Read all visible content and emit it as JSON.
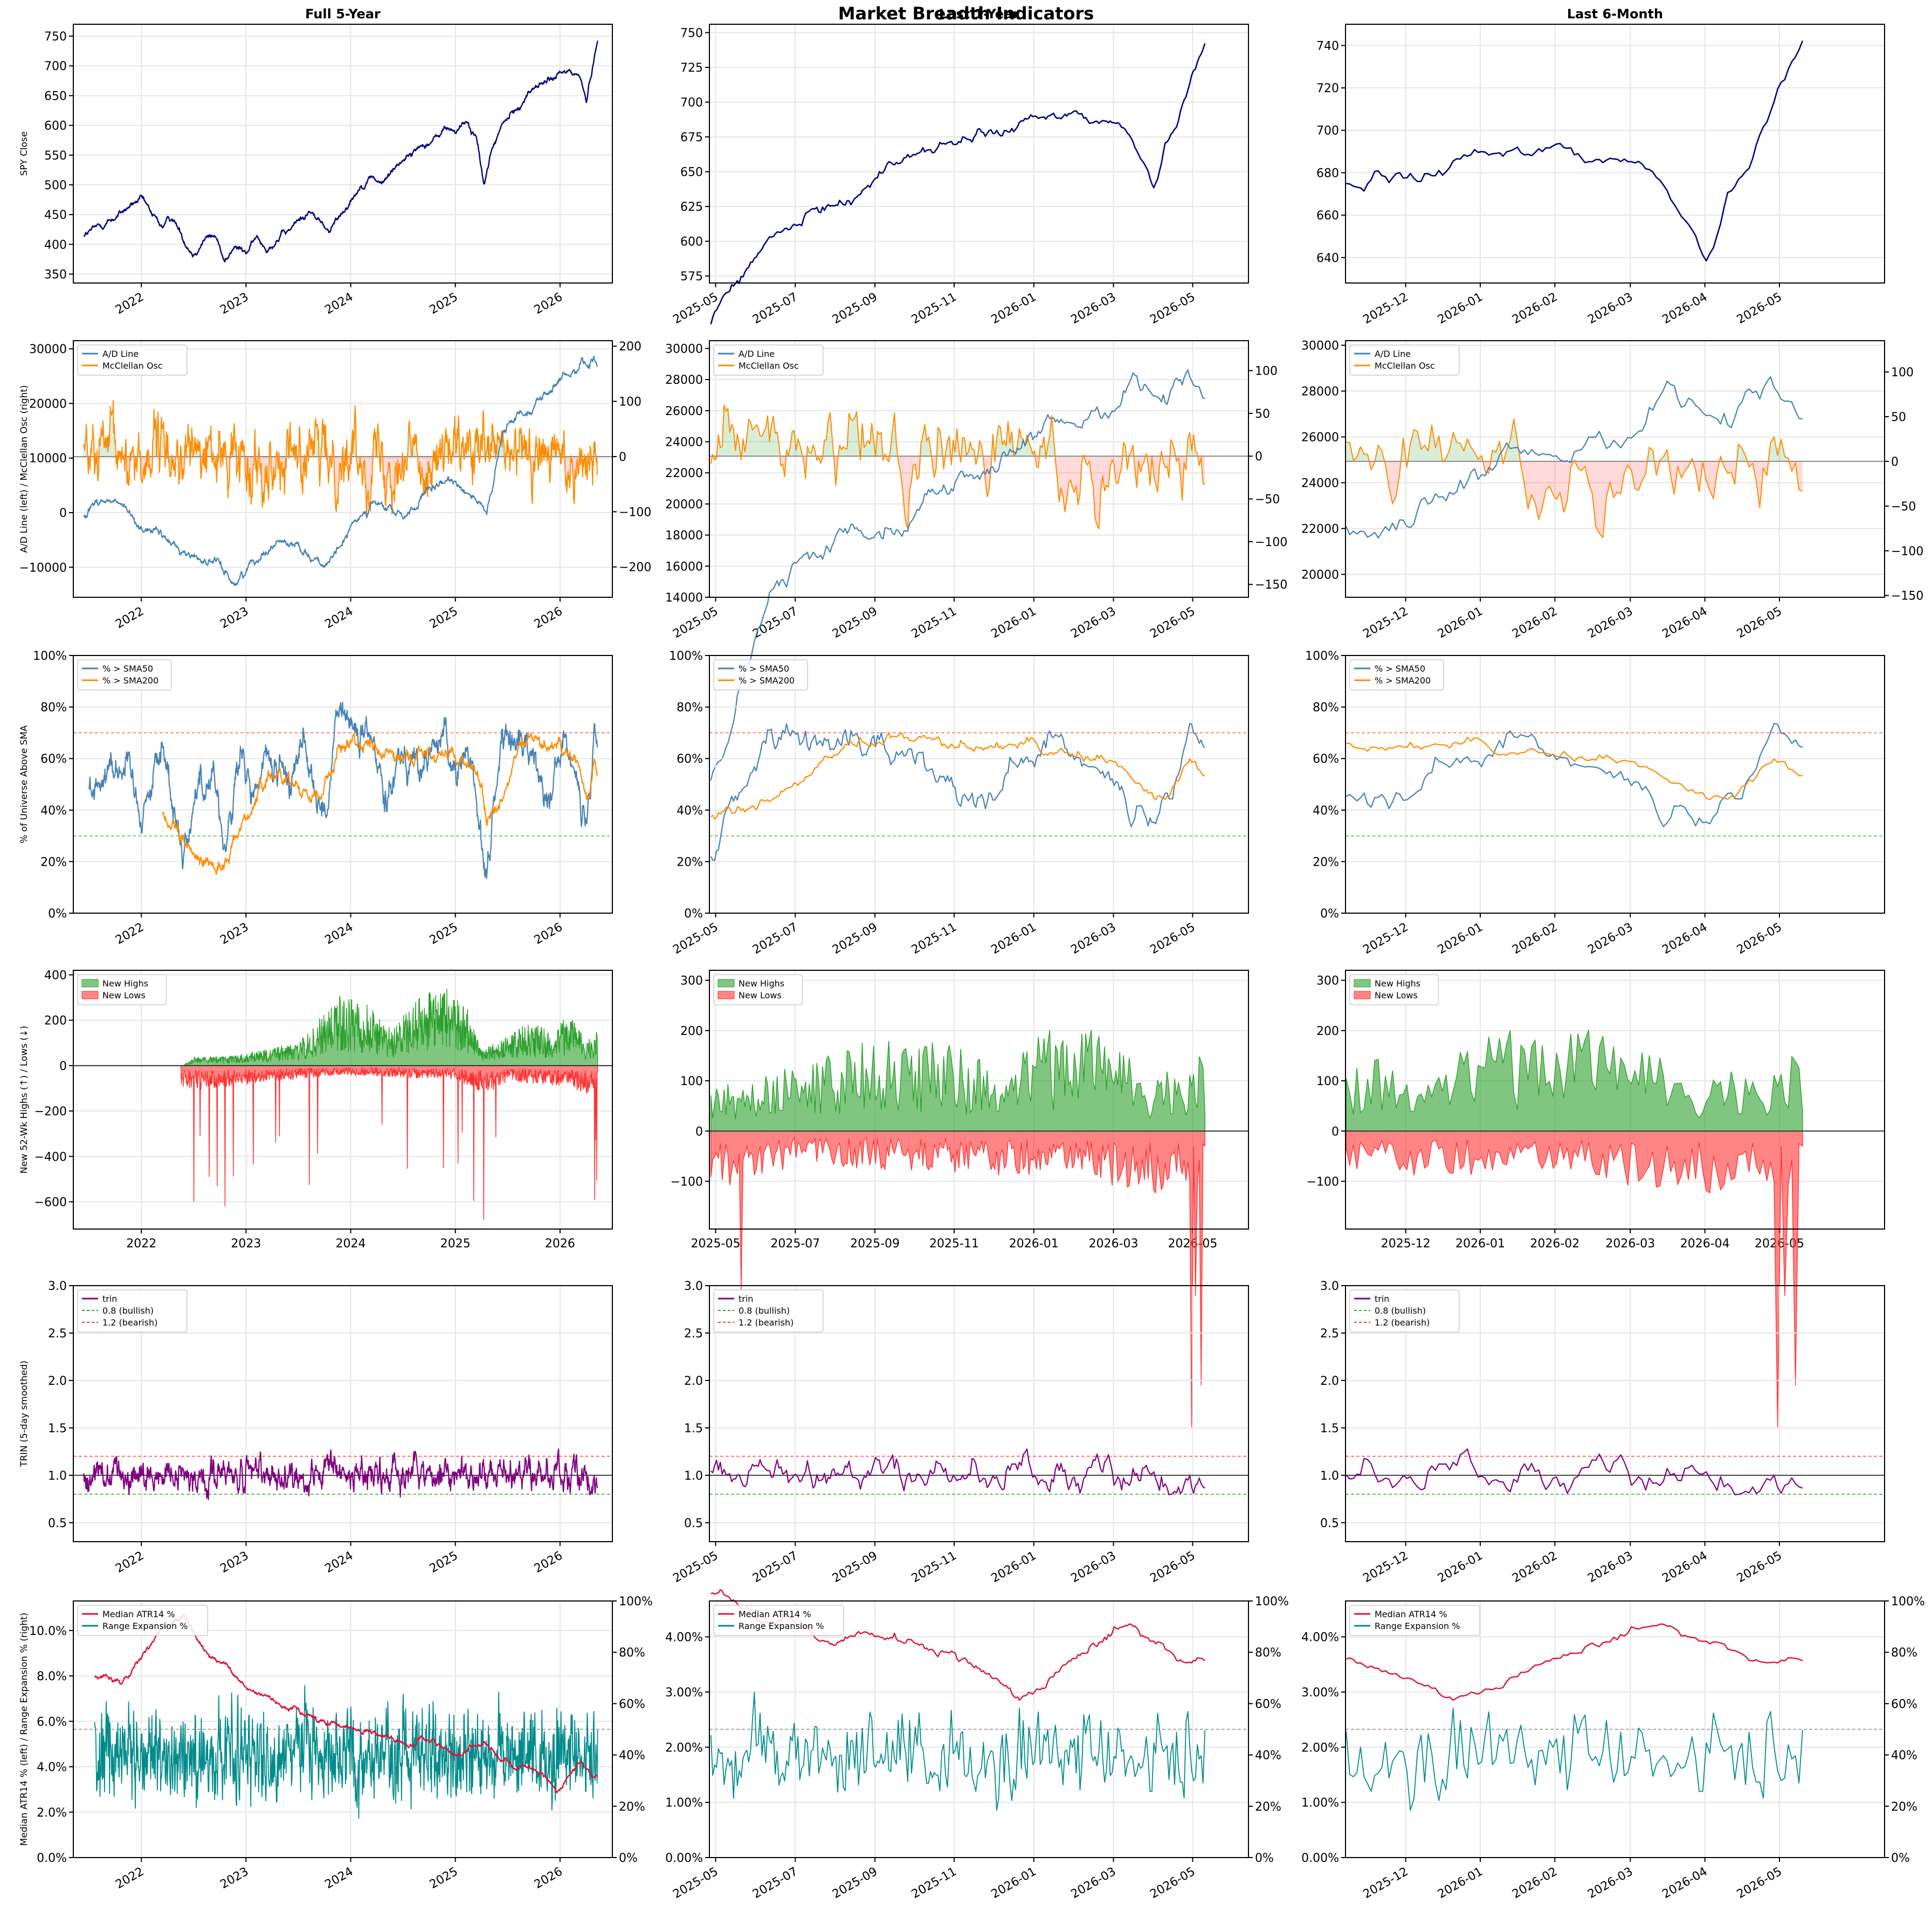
{
  "figure": {
    "title": "Market Breadth Indicators",
    "columns": [
      {
        "title": "Full 5-Year",
        "x_ticks": [
          "2022",
          "2023",
          "2024",
          "2025",
          "2026"
        ]
      },
      {
        "title": "Last 1-Year",
        "x_ticks": [
          "2025-05",
          "2025-07",
          "2025-09",
          "2025-11",
          "2026-01",
          "2026-03",
          "2026-05"
        ]
      },
      {
        "title": "Last 6-Month",
        "x_ticks": [
          "2025-12",
          "2026-01",
          "2026-02",
          "2026-03",
          "2026-04",
          "2026-05"
        ]
      }
    ]
  },
  "colors": {
    "spy": "#000080",
    "ad_line": "#4682b4",
    "mcclellan": "#ff8c00",
    "sma50": "#4682b4",
    "sma200": "#ff8c00",
    "highs": "#2ca02c",
    "lows": "#ff3333",
    "trin": "#800080",
    "atr": "#dc143c",
    "range_exp": "#008b8b",
    "bullish_ref": "#2ca02c",
    "bearish_ref": "#ff3333",
    "grid": "#e6e6e6"
  },
  "chart_data": [
    {
      "type": "line",
      "row": "spy_close",
      "ylabel": "SPY Close",
      "y_ticks_by_column": [
        [
          "350",
          "400",
          "450",
          "500",
          "550",
          "600",
          "650",
          "700",
          "750"
        ],
        [
          "575",
          "600",
          "625",
          "650",
          "675",
          "700",
          "725",
          "750"
        ],
        [
          "640",
          "660",
          "680",
          "700",
          "720",
          "740"
        ]
      ],
      "series": [
        {
          "values_full": [
            [
              2021.45,
              415
            ],
            [
              2021.6,
              430
            ],
            [
              2021.75,
              445
            ],
            [
              2021.9,
              465
            ],
            [
              2022.0,
              475
            ],
            [
              2022.1,
              450
            ],
            [
              2022.2,
              430
            ],
            [
              2022.3,
              445
            ],
            [
              2022.4,
              410
            ],
            [
              2022.5,
              385
            ],
            [
              2022.6,
              410
            ],
            [
              2022.7,
              415
            ],
            [
              2022.8,
              375
            ],
            [
              2022.9,
              395
            ],
            [
              2023.0,
              385
            ],
            [
              2023.1,
              410
            ],
            [
              2023.2,
              395
            ],
            [
              2023.3,
              410
            ],
            [
              2023.4,
              420
            ],
            [
              2023.5,
              440
            ],
            [
              2023.6,
              455
            ],
            [
              2023.7,
              440
            ],
            [
              2023.8,
              420
            ],
            [
              2023.9,
              450
            ],
            [
              2024.0,
              475
            ],
            [
              2024.1,
              500
            ],
            [
              2024.2,
              515
            ],
            [
              2024.3,
              500
            ],
            [
              2024.4,
              525
            ],
            [
              2024.5,
              545
            ],
            [
              2024.6,
              555
            ],
            [
              2024.7,
              570
            ],
            [
              2024.8,
              575
            ],
            [
              2024.9,
              595
            ],
            [
              2025.0,
              590
            ],
            [
              2025.1,
              605
            ],
            [
              2025.2,
              580
            ],
            [
              2025.27,
              500
            ],
            [
              2025.35,
              560
            ],
            [
              2025.45,
              600
            ],
            [
              2025.6,
              630
            ],
            [
              2025.75,
              665
            ],
            [
              2025.9,
              675
            ],
            [
              2026.0,
              685
            ],
            [
              2026.1,
              690
            ],
            [
              2026.2,
              680
            ],
            [
              2026.25,
              640
            ],
            [
              2026.3,
              690
            ],
            [
              2026.36,
              745
            ]
          ]
        }
      ]
    },
    {
      "type": "line",
      "row": "ad_mcclellan",
      "ylabel": "A/D Line (left)  /  McClellan Osc (right)",
      "legend": [
        "A/D Line",
        "McClellan Osc"
      ],
      "y_ticks_by_column": [
        [
          "−10000",
          "0",
          "10000",
          "20000",
          "30000"
        ],
        [
          "14000",
          "16000",
          "18000",
          "20000",
          "22000",
          "24000",
          "26000",
          "28000",
          "30000"
        ],
        [
          "20000",
          "22000",
          "24000",
          "26000",
          "28000",
          "30000"
        ]
      ],
      "y2_ticks_by_column": [
        [
          "−200",
          "−100",
          "0",
          "100",
          "200"
        ],
        [
          "−150",
          "−100",
          "−50",
          "0",
          "50",
          "100"
        ],
        [
          "−150",
          "−100",
          "−50",
          "0",
          "50",
          "100"
        ]
      ]
    },
    {
      "type": "line",
      "row": "pct_above_sma",
      "ylabel": "% of Universe Above SMA",
      "legend": [
        "% > SMA50",
        "% > SMA200"
      ],
      "y_ticks": [
        "0%",
        "20%",
        "40%",
        "60%",
        "80%",
        "100%"
      ],
      "reference_lines": [
        70,
        30
      ]
    },
    {
      "type": "area",
      "row": "new_highs_lows",
      "ylabel": "New 52-Wk Highs (↑) / Lows (↓)",
      "legend": [
        "New Highs",
        "New Lows"
      ],
      "y_ticks_by_column": [
        [
          "−600",
          "−400",
          "−200",
          "0",
          "200",
          "400"
        ],
        [
          "−100",
          "0",
          "100",
          "200",
          "300"
        ],
        [
          "−100",
          "0",
          "100",
          "200",
          "300"
        ]
      ]
    },
    {
      "type": "line",
      "row": "trin",
      "ylabel": "TRIN  (5-day smoothed)",
      "legend": [
        "trin",
        "0.8 (bullish)",
        "1.2 (bearish)"
      ],
      "y_ticks": [
        "0.5",
        "1.0",
        "1.5",
        "2.0",
        "2.5",
        "3.0"
      ],
      "reference_lines": [
        0.8,
        1.0,
        1.2
      ]
    },
    {
      "type": "line",
      "row": "atr_range",
      "ylabel": "Median ATR14 % (left)  /  Range Expansion % (right)",
      "legend": [
        "Median ATR14 %",
        "Range Expansion %"
      ],
      "y_ticks_by_column": [
        [
          "0.0%",
          "2.0%",
          "4.0%",
          "6.0%",
          "8.0%",
          "10.0%"
        ],
        [
          "0.00%",
          "1.00%",
          "2.00%",
          "3.00%",
          "4.00%"
        ],
        [
          "0.00%",
          "1.00%",
          "2.00%",
          "3.00%",
          "4.00%"
        ]
      ],
      "y2_ticks": [
        "0%",
        "20%",
        "40%",
        "60%",
        "80%",
        "100%"
      ]
    }
  ]
}
